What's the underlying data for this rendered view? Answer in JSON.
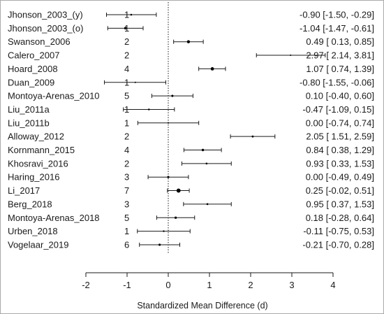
{
  "chart_data": {
    "type": "forest",
    "xlabel": "Standardized Mean Difference (d)",
    "xlim": [
      -2,
      4
    ],
    "xticks": [
      -2,
      -1,
      0,
      1,
      2,
      3,
      4
    ],
    "reference_line": 0,
    "studies": [
      {
        "label": "Jhonson_2003_(y)",
        "n": "1",
        "estimate": -0.9,
        "lower": -1.5,
        "upper": -0.29,
        "ci_text": "-0.90 [-1.50, -0.29]"
      },
      {
        "label": "Jhonson_2003_(o)",
        "n": "1",
        "estimate": -1.04,
        "lower": -1.47,
        "upper": -0.61,
        "ci_text": "-1.04 [-1.47, -0.61]"
      },
      {
        "label": "Swanson_2006",
        "n": "2",
        "estimate": 0.49,
        "lower": 0.13,
        "upper": 0.85,
        "ci_text": "0.49 [ 0.13, 0.85]"
      },
      {
        "label": "Calero_2007",
        "n": "2",
        "estimate": 2.97,
        "lower": 2.14,
        "upper": 3.81,
        "ci_text": "2.97 [ 2.14, 3.81]"
      },
      {
        "label": "Hoard_2008",
        "n": "4",
        "estimate": 1.07,
        "lower": 0.74,
        "upper": 1.39,
        "ci_text": "1.07 [ 0.74, 1.39]"
      },
      {
        "label": "Duan_2009",
        "n": "1",
        "estimate": -0.8,
        "lower": -1.55,
        "upper": -0.06,
        "ci_text": "-0.80 [-1.55, -0.06]"
      },
      {
        "label": "Montoya-Arenas_2010",
        "n": "5",
        "estimate": 0.1,
        "lower": -0.4,
        "upper": 0.6,
        "ci_text": "0.10 [-0.40, 0.60]"
      },
      {
        "label": "Liu_2011a",
        "n": "1",
        "estimate": -0.47,
        "lower": -1.09,
        "upper": 0.15,
        "ci_text": "-0.47 [-1.09, 0.15]"
      },
      {
        "label": "Liu_2011b",
        "n": "1",
        "estimate": 0.0,
        "lower": -0.74,
        "upper": 0.74,
        "ci_text": "0.00 [-0.74, 0.74]"
      },
      {
        "label": "Alloway_2012",
        "n": "2",
        "estimate": 2.05,
        "lower": 1.51,
        "upper": 2.59,
        "ci_text": "2.05 [ 1.51, 2.59]"
      },
      {
        "label": "Kornmann_2015",
        "n": "4",
        "estimate": 0.84,
        "lower": 0.38,
        "upper": 1.29,
        "ci_text": "0.84 [ 0.38, 1.29]"
      },
      {
        "label": "Khosravi_2016",
        "n": "2",
        "estimate": 0.93,
        "lower": 0.33,
        "upper": 1.53,
        "ci_text": "0.93 [ 0.33, 1.53]"
      },
      {
        "label": "Haring_2016",
        "n": "3",
        "estimate": 0.0,
        "lower": -0.49,
        "upper": 0.49,
        "ci_text": "0.00 [-0.49, 0.49]"
      },
      {
        "label": "Li_2017",
        "n": "7",
        "estimate": 0.25,
        "lower": -0.02,
        "upper": 0.51,
        "ci_text": "0.25 [-0.02, 0.51]"
      },
      {
        "label": "Berg_2018",
        "n": "3",
        "estimate": 0.95,
        "lower": 0.37,
        "upper": 1.53,
        "ci_text": "0.95 [ 0.37, 1.53]"
      },
      {
        "label": "Montoya-Arenas_2018",
        "n": "5",
        "estimate": 0.18,
        "lower": -0.28,
        "upper": 0.64,
        "ci_text": "0.18 [-0.28, 0.64]"
      },
      {
        "label": "Urben_2018",
        "n": "1",
        "estimate": -0.11,
        "lower": -0.75,
        "upper": 0.53,
        "ci_text": "-0.11 [-0.75, 0.53]"
      },
      {
        "label": "Vogelaar_2019",
        "n": "6",
        "estimate": -0.21,
        "lower": -0.7,
        "upper": 0.28,
        "ci_text": "-0.21 [-0.70, 0.28]"
      }
    ],
    "colors": {
      "line": "#1a1a1a",
      "marker": "#000000"
    }
  }
}
